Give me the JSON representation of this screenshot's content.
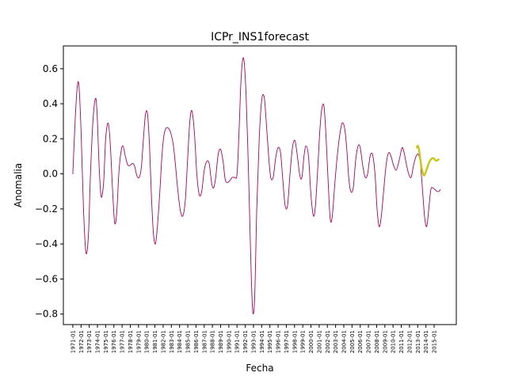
{
  "chart_data": {
    "type": "line",
    "title": "ICPr_INS1forecast",
    "xlabel": "Fecha",
    "ylabel": "Anomalia",
    "xlim": [
      1969.85,
      2017.7
    ],
    "ylim": [
      -0.86,
      0.73
    ],
    "grid": false,
    "legend": "none",
    "yticks": [
      -0.8,
      -0.6,
      -0.4,
      -0.2,
      0.0,
      0.2,
      0.4,
      0.6
    ],
    "ytick_labels": [
      "−0.8",
      "−0.6",
      "−0.4",
      "−0.2",
      "0.0",
      "0.2",
      "0.4",
      "0.6"
    ],
    "xtick_labels": [
      "1971-01",
      "1972-01",
      "1973-01",
      "1974-01",
      "1975-01",
      "1976-01",
      "1977-01",
      "1978-01",
      "1979-01",
      "1980-01",
      "1981-01",
      "1982-01",
      "1983-01",
      "1984-01",
      "1985-01",
      "1986-01",
      "1987-01",
      "1988-01",
      "1989-01",
      "1990-01",
      "1991-01",
      "1992-01",
      "1993-01",
      "1994-01",
      "1995-01",
      "1996-01",
      "1997-01",
      "1998-01",
      "1999-01",
      "2000-01",
      "2001-01",
      "2002-01",
      "2003-01",
      "2004-01",
      "2005-01",
      "2006-01",
      "2007-01",
      "2008-01",
      "2009-01",
      "2010-01",
      "2011-01",
      "2012-01",
      "2013-01",
      "2014-01",
      "2015-01"
    ],
    "series": [
      {
        "color": "#b0005a",
        "x": [
          1971.0,
          1971.3,
          1971.55,
          1971.75,
          1972.0,
          1972.3,
          1972.6,
          1972.9,
          1973.15,
          1973.45,
          1973.75,
          1973.95,
          1974.2,
          1974.45,
          1974.75,
          1975.0,
          1975.3,
          1975.55,
          1975.85,
          1976.1,
          1976.35,
          1976.6,
          1976.85,
          1977.1,
          1977.4,
          1977.7,
          1978.0,
          1978.3,
          1978.55,
          1978.8,
          1979.1,
          1979.35,
          1979.6,
          1979.85,
          1980.1,
          1980.35,
          1980.55,
          1980.8,
          1981.05,
          1981.3,
          1981.6,
          1981.85,
          1982.1,
          1982.35,
          1982.65,
          1982.95,
          1983.25,
          1983.5,
          1983.8,
          1984.1,
          1984.4,
          1984.7,
          1985.0,
          1985.25,
          1985.5,
          1985.8,
          1986.1,
          1986.4,
          1986.7,
          1987.0,
          1987.3,
          1987.6,
          1987.9,
          1988.15,
          1988.4,
          1988.7,
          1989.0,
          1989.3,
          1989.55,
          1989.8,
          1990.1,
          1990.4,
          1990.7,
          1991.0,
          1991.25,
          1991.5,
          1991.8,
          1992.1,
          1992.4,
          1992.65,
          1992.9,
          1993.15,
          1993.4,
          1993.7,
          1994.0,
          1994.3,
          1994.55,
          1994.85,
          1995.1,
          1995.4,
          1995.7,
          1996.0,
          1996.3,
          1996.55,
          1996.85,
          1997.15,
          1997.45,
          1997.75,
          1998.05,
          1998.35,
          1998.65,
          1998.9,
          1999.15,
          1999.4,
          1999.7,
          2000.0,
          2000.3,
          2000.55,
          2000.85,
          2001.1,
          2001.35,
          2001.6,
          2001.85,
          2002.1,
          2002.35,
          2002.6,
          2002.9,
          2003.2,
          2003.5,
          2003.8,
          2004.1,
          2004.35,
          2004.6,
          2004.85,
          2005.15,
          2005.45,
          2005.75,
          2006.0,
          2006.3,
          2006.6,
          2006.9,
          2007.2,
          2007.5,
          2007.8,
          2008.05,
          2008.3,
          2008.55,
          2008.85,
          2009.15,
          2009.45,
          2009.75,
          2010.05,
          2010.35,
          2010.6,
          2010.85,
          2011.1,
          2011.35,
          2011.6,
          2011.9,
          2012.2,
          2012.5,
          2012.8,
          2013.1,
          2013.35,
          2013.6,
          2013.85,
          2014.1,
          2014.35,
          2014.6,
          2014.85,
          2015.1,
          2015.35,
          2015.6,
          2015.75
        ],
        "y": [
          0.0,
          0.32,
          0.5,
          0.5,
          0.25,
          -0.2,
          -0.45,
          -0.35,
          0.0,
          0.3,
          0.43,
          0.35,
          0.05,
          -0.13,
          -0.05,
          0.2,
          0.29,
          0.18,
          -0.1,
          -0.28,
          -0.22,
          0.0,
          0.12,
          0.16,
          0.1,
          0.05,
          0.05,
          0.06,
          0.04,
          -0.01,
          -0.02,
          0.04,
          0.2,
          0.34,
          0.34,
          0.15,
          -0.1,
          -0.33,
          -0.4,
          -0.3,
          -0.1,
          0.1,
          0.22,
          0.26,
          0.26,
          0.23,
          0.16,
          0.05,
          -0.1,
          -0.21,
          -0.24,
          -0.15,
          0.1,
          0.3,
          0.36,
          0.24,
          0.0,
          -0.12,
          -0.1,
          0.02,
          0.07,
          0.06,
          -0.05,
          -0.08,
          -0.02,
          0.11,
          0.14,
          0.07,
          -0.03,
          -0.05,
          -0.04,
          -0.02,
          -0.02,
          0.0,
          0.25,
          0.55,
          0.66,
          0.45,
          0.0,
          -0.45,
          -0.78,
          -0.7,
          -0.2,
          0.2,
          0.42,
          0.44,
          0.3,
          0.1,
          -0.02,
          -0.02,
          0.09,
          0.15,
          0.12,
          -0.02,
          -0.18,
          -0.18,
          0.0,
          0.15,
          0.19,
          0.1,
          -0.01,
          -0.02,
          0.1,
          0.16,
          0.1,
          -0.12,
          -0.24,
          -0.18,
          0.05,
          0.26,
          0.38,
          0.38,
          0.2,
          -0.05,
          -0.26,
          -0.24,
          -0.06,
          0.1,
          0.22,
          0.29,
          0.26,
          0.15,
          -0.02,
          -0.1,
          -0.08,
          0.08,
          0.16,
          0.15,
          0.05,
          -0.02,
          0.0,
          0.1,
          0.11,
          0.0,
          -0.2,
          -0.3,
          -0.25,
          -0.1,
          0.05,
          0.12,
          0.1,
          0.05,
          0.02,
          0.05,
          0.1,
          0.15,
          0.12,
          0.06,
          0.0,
          -0.02,
          0.05,
          0.1,
          0.11,
          0.05,
          -0.1,
          -0.25,
          -0.3,
          -0.2,
          -0.09,
          -0.08,
          -0.09,
          -0.1,
          -0.1,
          -0.09
        ]
      },
      {
        "color": "#c8c814",
        "x": [
          2012.9,
          2013.0,
          2013.15,
          2013.3,
          2013.45,
          2013.6,
          2013.75,
          2013.9,
          2014.05,
          2014.2,
          2014.35,
          2014.5,
          2014.65,
          2014.8,
          2014.95,
          2015.1,
          2015.25,
          2015.4,
          2015.55
        ],
        "y": [
          0.15,
          0.16,
          0.14,
          0.09,
          0.04,
          0.01,
          -0.01,
          0.0,
          0.02,
          0.04,
          0.06,
          0.075,
          0.085,
          0.09,
          0.088,
          0.08,
          0.075,
          0.078,
          0.082
        ]
      }
    ]
  }
}
